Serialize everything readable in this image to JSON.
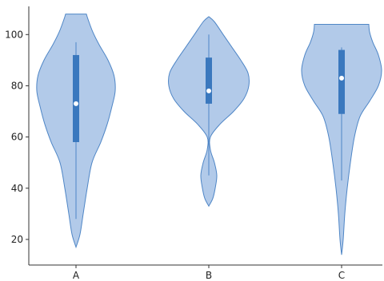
{
  "chart_data": {
    "type": "violin",
    "title": "",
    "xlabel": "",
    "ylabel": "",
    "categories": [
      "A",
      "B",
      "C"
    ],
    "ylim": [
      10,
      111
    ],
    "yticks": [
      20,
      40,
      60,
      80,
      100
    ],
    "grid": false,
    "colors": {
      "fill": "#aec7e8",
      "stroke": "#4f86c6",
      "box": "#3a78be",
      "median": "#ffffff",
      "axis": "#333333"
    },
    "violins": [
      {
        "category": "A",
        "min": 17,
        "max": 108,
        "whisker_low": 28,
        "whisker_high": 97,
        "q1": 58,
        "median": 73,
        "q3": 92,
        "profile": [
          [
            17,
            0.0
          ],
          [
            22,
            0.1
          ],
          [
            30,
            0.18
          ],
          [
            40,
            0.28
          ],
          [
            50,
            0.4
          ],
          [
            58,
            0.62
          ],
          [
            65,
            0.78
          ],
          [
            72,
            0.9
          ],
          [
            78,
            0.98
          ],
          [
            84,
            0.95
          ],
          [
            90,
            0.8
          ],
          [
            96,
            0.58
          ],
          [
            101,
            0.42
          ],
          [
            106,
            0.3
          ],
          [
            108,
            0.26
          ]
        ]
      },
      {
        "category": "B",
        "min": 33,
        "max": 107,
        "whisker_low": 45,
        "whisker_high": 100,
        "q1": 73,
        "median": 78,
        "q3": 91,
        "profile": [
          [
            33,
            0.0
          ],
          [
            36,
            0.1
          ],
          [
            40,
            0.16
          ],
          [
            45,
            0.2
          ],
          [
            50,
            0.14
          ],
          [
            55,
            0.04
          ],
          [
            60,
            0.04
          ],
          [
            65,
            0.28
          ],
          [
            70,
            0.62
          ],
          [
            75,
            0.88
          ],
          [
            80,
            1.0
          ],
          [
            85,
            0.98
          ],
          [
            90,
            0.8
          ],
          [
            95,
            0.58
          ],
          [
            100,
            0.36
          ],
          [
            105,
            0.14
          ],
          [
            107,
            0.0
          ]
        ]
      },
      {
        "category": "C",
        "min": 14,
        "max": 104,
        "whisker_low": 43,
        "whisker_high": 95,
        "q1": 69,
        "median": 83,
        "q3": 94,
        "profile": [
          [
            14,
            0.0
          ],
          [
            20,
            0.04
          ],
          [
            30,
            0.08
          ],
          [
            40,
            0.14
          ],
          [
            50,
            0.22
          ],
          [
            60,
            0.32
          ],
          [
            68,
            0.46
          ],
          [
            74,
            0.7
          ],
          [
            80,
            0.92
          ],
          [
            86,
            1.0
          ],
          [
            92,
            0.92
          ],
          [
            97,
            0.78
          ],
          [
            101,
            0.7
          ],
          [
            104,
            0.68
          ]
        ]
      }
    ]
  }
}
